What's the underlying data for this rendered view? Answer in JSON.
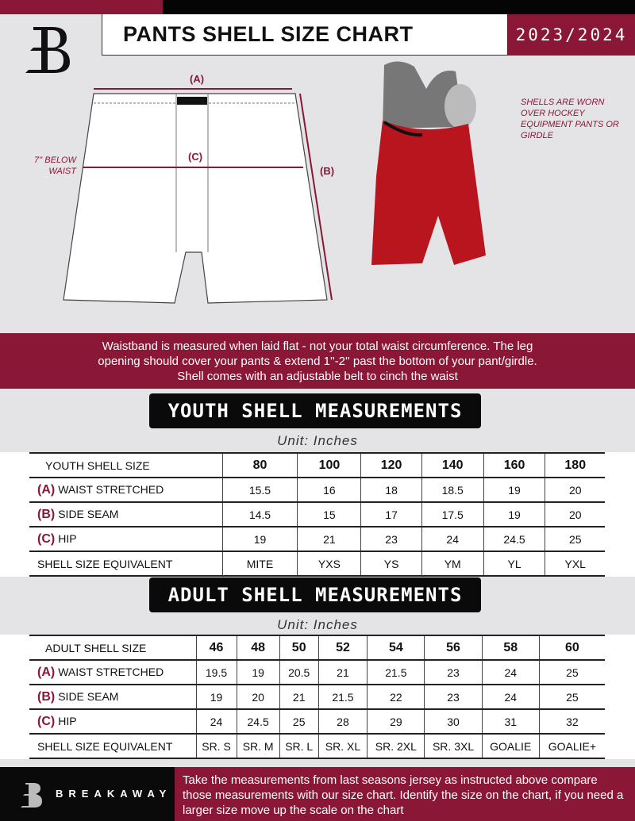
{
  "header": {
    "title": "PANTS SHELL SIZE CHART",
    "season": "2023/2024"
  },
  "diagram": {
    "label_a": "(A)",
    "label_b": "(B)",
    "label_c": "(C)",
    "below_waist": "7'' BELOW\nWAIST",
    "note": "SHELLS ARE WORN OVER HOCKEY EQUIPMENT PANTS OR GIRDLE"
  },
  "info_band": [
    "Waistband is measured when laid flat - not your total waist circumference. The leg",
    "opening should cover your pants & extend 1''-2'' past the bottom of your pant/girdle.",
    "Shell comes with an adjustable belt to cinch the waist"
  ],
  "youth": {
    "title": "YOUTH SHELL MEASUREMENTS",
    "unit": "Unit: Inches",
    "header": "YOUTH SHELL SIZE",
    "sizes": [
      "80",
      "100",
      "120",
      "140",
      "160",
      "180"
    ],
    "rows": [
      {
        "letter": "(A)",
        "label": "WAIST STRETCHED",
        "values": [
          "15.5",
          "16",
          "18",
          "18.5",
          "19",
          "20"
        ]
      },
      {
        "letter": "(B)",
        "label": "SIDE SEAM",
        "values": [
          "14.5",
          "15",
          "17",
          "17.5",
          "19",
          "20"
        ]
      },
      {
        "letter": "(C)",
        "label": "HIP",
        "values": [
          "19",
          "21",
          "23",
          "24",
          "24.5",
          "25"
        ]
      },
      {
        "letter": "",
        "label": "SHELL SIZE EQUIVALENT",
        "values": [
          "MITE",
          "YXS",
          "YS",
          "YM",
          "YL",
          "YXL"
        ]
      }
    ]
  },
  "adult": {
    "title": "ADULT SHELL MEASUREMENTS",
    "unit": "Unit: Inches",
    "header": "ADULT SHELL SIZE",
    "sizes": [
      "46",
      "48",
      "50",
      "52",
      "54",
      "56",
      "58",
      "60"
    ],
    "rows": [
      {
        "letter": "(A)",
        "label": "WAIST STRETCHED",
        "values": [
          "19.5",
          "19",
          "20.5",
          "21",
          "21.5",
          "23",
          "24",
          "25"
        ]
      },
      {
        "letter": "(B)",
        "label": "SIDE SEAM",
        "values": [
          "19",
          "20",
          "21",
          "21.5",
          "22",
          "23",
          "24",
          "25"
        ]
      },
      {
        "letter": "(C)",
        "label": "HIP",
        "values": [
          "24",
          "24.5",
          "25",
          "28",
          "29",
          "30",
          "31",
          "32"
        ]
      },
      {
        "letter": "",
        "label": "SHELL SIZE EQUIVALENT",
        "values": [
          "SR. S",
          "SR. M",
          "SR. L",
          "SR. XL",
          "SR. 2XL",
          "SR. 3XL",
          "GOALIE",
          "GOALIE+"
        ]
      }
    ]
  },
  "footer": {
    "brand": "BREAKAWAY",
    "text": "Take the measurements from last seasons jersey as instructed above compare those measurements  with our size chart. Identify the size on the chart, if you need a larger size move up the scale on the chart"
  },
  "colors": {
    "accent": "#8a1736",
    "dark": "#0a0a0a",
    "background": "#e4e4e6"
  }
}
